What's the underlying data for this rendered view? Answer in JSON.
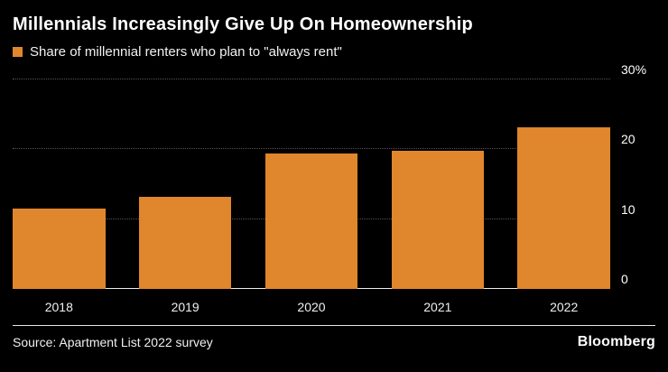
{
  "header": {
    "title": "Millennials Increasingly Give Up On Homeownership",
    "legend_label": "Share of millennial renters who plan to \"always rent\""
  },
  "chart_data": {
    "type": "bar",
    "categories": [
      "2018",
      "2019",
      "2020",
      "2021",
      "2022"
    ],
    "values": [
      11.5,
      13.2,
      19.4,
      19.8,
      23.2
    ],
    "title": "Millennials Increasingly Give Up On Homeownership",
    "series_label": "Share of millennial renters who plan to \"always rent\"",
    "xlabel": "",
    "ylabel": "",
    "ylim": [
      0,
      30
    ],
    "yticks": [
      0,
      10,
      20,
      30
    ],
    "ytick_labels": [
      "0",
      "10",
      "20",
      "30%"
    ],
    "bar_color": "#E0862C",
    "grid": "dotted-horizontal",
    "legend_position": "top-left"
  },
  "footer": {
    "source": "Source: Apartment List 2022 survey",
    "brand": "Bloomberg"
  },
  "colors": {
    "background": "#000000",
    "bar": "#E0862C",
    "text": "#FFFFFF",
    "gridline": "#555555",
    "baseline": "#EDEDED"
  }
}
